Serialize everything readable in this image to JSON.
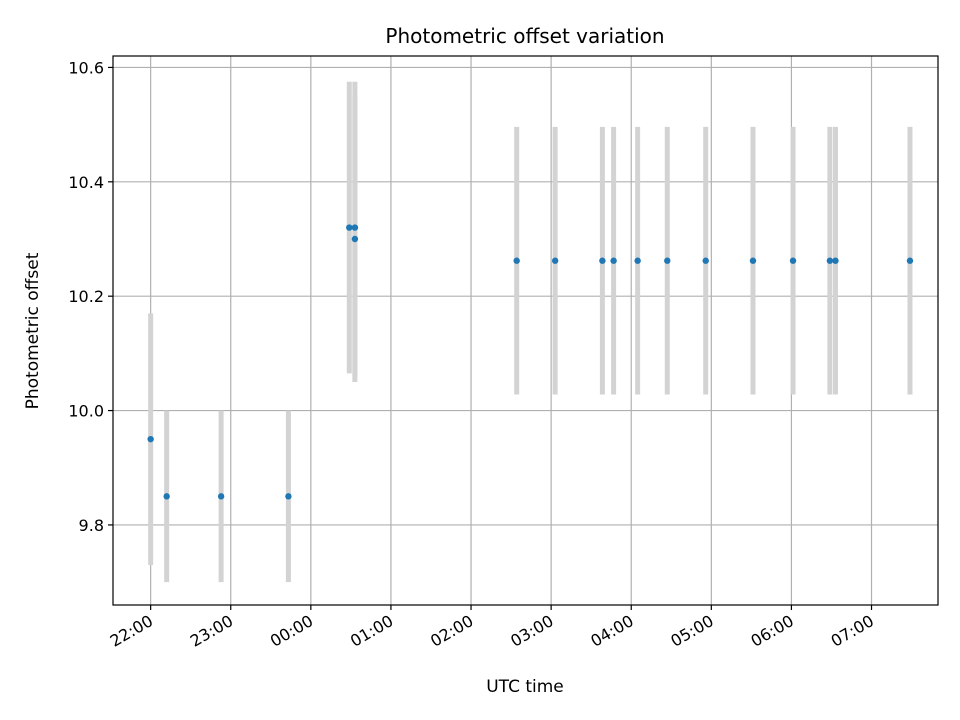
{
  "chart_data": {
    "type": "scatter",
    "title": "Photometric offset variation",
    "xlabel": "UTC time",
    "ylabel": "Photometric offset",
    "x_ticks": [
      "22:00",
      "23:00",
      "00:00",
      "01:00",
      "02:00",
      "03:00",
      "04:00",
      "05:00",
      "06:00",
      "07:00"
    ],
    "x_tick_hours": [
      22,
      23,
      24,
      25,
      26,
      27,
      28,
      29,
      30,
      31
    ],
    "y_ticks": [
      "9.8",
      "10.0",
      "10.2",
      "10.4",
      "10.6"
    ],
    "y_tick_values": [
      9.8,
      10.0,
      10.2,
      10.4,
      10.6
    ],
    "xlim": [
      "21:32",
      "07:50"
    ],
    "xlim_hours": [
      21.53,
      31.83
    ],
    "ylim": [
      9.66,
      10.62
    ],
    "grid": true,
    "marker_color": "#1f77b4",
    "errorbar_color": "#d3d3d3",
    "points": [
      {
        "time": "22:00",
        "x": 22.0,
        "y": 9.95,
        "err_low": 9.73,
        "err_high": 10.17
      },
      {
        "time": "22:12",
        "x": 22.2,
        "y": 9.85,
        "err_low": 9.7,
        "err_high": 10.0
      },
      {
        "time": "22:53",
        "x": 22.88,
        "y": 9.85,
        "err_low": 9.7,
        "err_high": 10.0
      },
      {
        "time": "23:43",
        "x": 23.72,
        "y": 9.85,
        "err_low": 9.7,
        "err_high": 10.0
      },
      {
        "time": "00:29",
        "x": 24.48,
        "y": 10.32,
        "err_low": 10.065,
        "err_high": 10.575
      },
      {
        "time": "00:33",
        "x": 24.55,
        "y": 10.32,
        "err_low": 10.06,
        "err_high": 10.575
      },
      {
        "time": "00:33",
        "x": 24.55,
        "y": 10.3,
        "err_low": 10.05,
        "err_high": 10.55
      },
      {
        "time": "02:34",
        "x": 26.57,
        "y": 10.262,
        "err_low": 10.028,
        "err_high": 10.496
      },
      {
        "time": "03:03",
        "x": 27.05,
        "y": 10.262,
        "err_low": 10.028,
        "err_high": 10.496
      },
      {
        "time": "03:38",
        "x": 27.64,
        "y": 10.262,
        "err_low": 10.028,
        "err_high": 10.496
      },
      {
        "time": "03:47",
        "x": 27.78,
        "y": 10.262,
        "err_low": 10.028,
        "err_high": 10.496
      },
      {
        "time": "04:05",
        "x": 28.08,
        "y": 10.262,
        "err_low": 10.028,
        "err_high": 10.496
      },
      {
        "time": "04:27",
        "x": 28.45,
        "y": 10.262,
        "err_low": 10.028,
        "err_high": 10.496
      },
      {
        "time": "04:56",
        "x": 28.93,
        "y": 10.262,
        "err_low": 10.028,
        "err_high": 10.496
      },
      {
        "time": "05:31",
        "x": 29.52,
        "y": 10.262,
        "err_low": 10.028,
        "err_high": 10.496
      },
      {
        "time": "06:01",
        "x": 30.02,
        "y": 10.262,
        "err_low": 10.028,
        "err_high": 10.496
      },
      {
        "time": "06:29",
        "x": 30.48,
        "y": 10.262,
        "err_low": 10.028,
        "err_high": 10.496
      },
      {
        "time": "06:33",
        "x": 30.55,
        "y": 10.262,
        "err_low": 10.028,
        "err_high": 10.496
      },
      {
        "time": "07:29",
        "x": 31.48,
        "y": 10.262,
        "err_low": 10.028,
        "err_high": 10.496
      }
    ]
  }
}
